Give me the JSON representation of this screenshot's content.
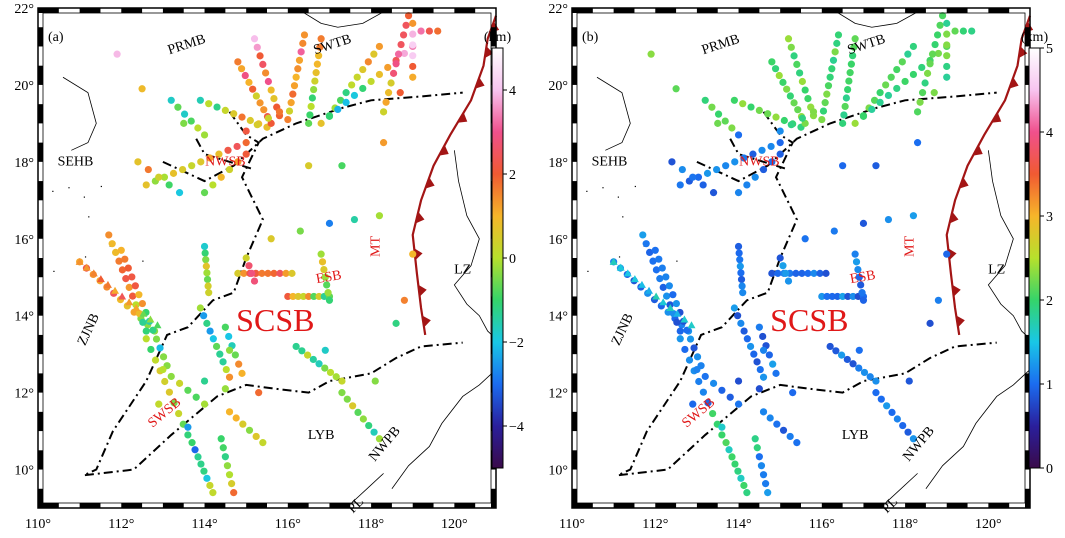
{
  "panels": [
    {
      "id": "a",
      "label": "(a)",
      "colorbar": {
        "unit": "(km)",
        "ticks": [
          "4",
          "2",
          "0",
          "−2",
          "−4"
        ],
        "tick_values": [
          4,
          2,
          0,
          -2,
          -4
        ],
        "range": [
          -5,
          5
        ],
        "stops": [
          "#3a0a4a",
          "#2a1f9c",
          "#1b6cf0",
          "#19c7e6",
          "#35d46a",
          "#b7e02c",
          "#f6b52a",
          "#f05a32",
          "#f0508c",
          "#f7c4f0",
          "#ffffff"
        ]
      },
      "regions": [
        {
          "name": "PRMB",
          "color": "#000000",
          "rotate": -18
        },
        {
          "name": "SWTB",
          "color": "#000000",
          "rotate": -18
        },
        {
          "name": "NWSB",
          "color": "#e01818",
          "rotate": 0
        },
        {
          "name": "SEHB",
          "color": "#000000",
          "rotate": 0
        },
        {
          "name": "MT",
          "color": "#e01818",
          "rotate": -90
        },
        {
          "name": "ESB",
          "color": "#e01818",
          "rotate": -10
        },
        {
          "name": "LZ",
          "color": "#000000",
          "rotate": 0
        },
        {
          "name": "ZJNB",
          "color": "#000000",
          "rotate": -65
        },
        {
          "name": "SCSB",
          "color": "#e01818",
          "rotate": 0
        },
        {
          "name": "SWSB",
          "color": "#e01818",
          "rotate": -40
        },
        {
          "name": "LYB",
          "color": "#000000",
          "rotate": 0
        },
        {
          "name": "NWPB",
          "color": "#000000",
          "rotate": -50
        },
        {
          "name": "PL",
          "color": "#000000",
          "rotate": -45
        }
      ]
    },
    {
      "id": "b",
      "label": "(b)",
      "colorbar": {
        "unit": "(km)",
        "ticks": [
          "5",
          "4",
          "3",
          "2",
          "1",
          "0"
        ],
        "tick_values": [
          5,
          4,
          3,
          2,
          1,
          0
        ],
        "range": [
          0,
          5
        ],
        "stops": [
          "#3a0a4a",
          "#2a1f9c",
          "#1b6cf0",
          "#19c7e6",
          "#35d46a",
          "#b7e02c",
          "#f6b52a",
          "#f05a32",
          "#f0508c",
          "#f7c4f0",
          "#ffffff"
        ]
      },
      "regions": [
        {
          "name": "PRMB",
          "color": "#000000",
          "rotate": -18
        },
        {
          "name": "SWTB",
          "color": "#000000",
          "rotate": -18
        },
        {
          "name": "NWSB",
          "color": "#e01818",
          "rotate": 0
        },
        {
          "name": "SEHB",
          "color": "#000000",
          "rotate": 0
        },
        {
          "name": "MT",
          "color": "#e01818",
          "rotate": -90
        },
        {
          "name": "ESB",
          "color": "#e01818",
          "rotate": -10
        },
        {
          "name": "LZ",
          "color": "#000000",
          "rotate": 0
        },
        {
          "name": "ZJNB",
          "color": "#000000",
          "rotate": -65
        },
        {
          "name": "SCSB",
          "color": "#e01818",
          "rotate": 0
        },
        {
          "name": "SWSB",
          "color": "#e01818",
          "rotate": -40
        },
        {
          "name": "LYB",
          "color": "#000000",
          "rotate": 0
        },
        {
          "name": "NWPB",
          "color": "#000000",
          "rotate": -50
        },
        {
          "name": "PL",
          "color": "#000000",
          "rotate": -45
        }
      ]
    }
  ],
  "axes": {
    "x_ticks": [
      "110°",
      "112°",
      "114°",
      "116°",
      "118°",
      "120°"
    ],
    "x_values": [
      110,
      112,
      114,
      116,
      118,
      120
    ],
    "y_ticks": [
      "22°",
      "20°",
      "18°",
      "16°",
      "14°",
      "12°",
      "10°"
    ],
    "y_values": [
      22,
      20,
      18,
      16,
      14,
      12,
      10
    ],
    "lon_range": [
      110,
      121
    ],
    "lat_range": [
      9,
      22
    ]
  },
  "colors": {
    "trench": "#a31515",
    "label_red": "#e01818",
    "boundary": "#000000"
  }
}
